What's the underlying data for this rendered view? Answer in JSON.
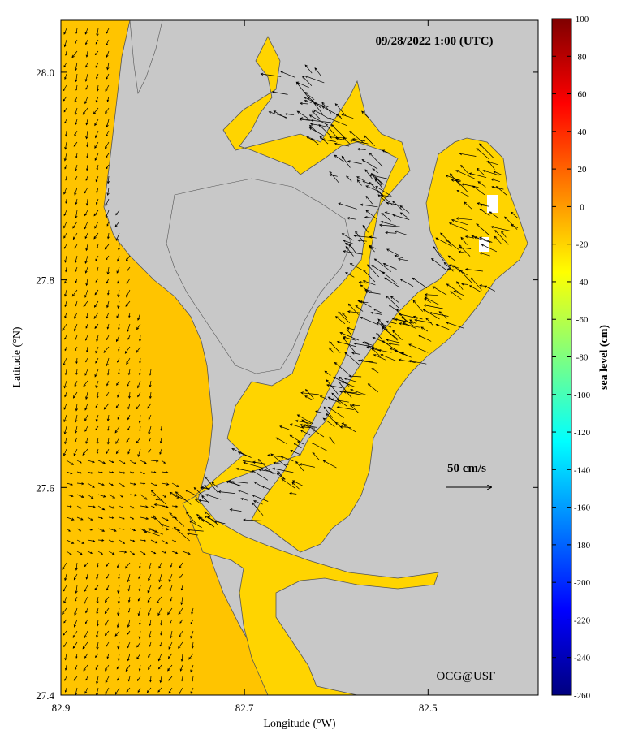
{
  "timestamp": "09/28/2022 1:00 (UTC)",
  "credit": "OCG@USF",
  "scale_arrow": {
    "label": "50 cm/s",
    "speed_cm_s": 50
  },
  "x_axis": {
    "title": "Longitude (°W)",
    "range": [
      82.9,
      82.38
    ],
    "ticks": [
      {
        "value": 82.9,
        "label": "82.9"
      },
      {
        "value": 82.7,
        "label": "82.7"
      },
      {
        "value": 82.5,
        "label": "82.5"
      }
    ]
  },
  "y_axis": {
    "title": "Latitude (°N)",
    "range": [
      27.4,
      28.05
    ],
    "ticks": [
      {
        "value": 28.0,
        "label": "28.0"
      },
      {
        "value": 27.8,
        "label": "27.8"
      },
      {
        "value": 27.6,
        "label": "27.6"
      },
      {
        "value": 27.4,
        "label": "27.4"
      }
    ]
  },
  "colorbar": {
    "title": "sea level (cm)",
    "min": -260,
    "max": 100,
    "tick_labels": [
      "100",
      "80",
      "60",
      "40",
      "20",
      "0",
      "-20",
      "-40",
      "-60",
      "-80",
      "-100",
      "-120",
      "-140",
      "-160",
      "-180",
      "-200",
      "-220",
      "-240",
      "-260"
    ],
    "colormap": [
      "#00007f",
      "#0000ff",
      "#007fff",
      "#00ffff",
      "#7fff7f",
      "#ffff00",
      "#ff7f00",
      "#ff0000",
      "#7f0000"
    ]
  },
  "colors": {
    "land": "#c8c8c8",
    "water_sea_level": "#ffd400",
    "gulf_sea_level": "#ffc400",
    "vector": "#000000"
  }
}
